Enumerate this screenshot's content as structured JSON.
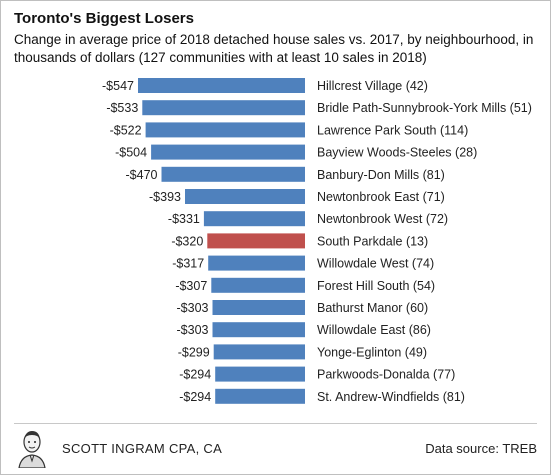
{
  "header": {
    "title": "Toronto's Biggest Losers",
    "subtitle": "Change in average price of 2018  detached house sales vs. 2017, by neighbourhood, in thousands of dollars (127 communities with at least 10 sales in 2018)"
  },
  "footer": {
    "author": "SCOTT INGRAM CPA, CA",
    "source": "Data source: TREB",
    "avatar_icon": "portrait-sketch-icon"
  },
  "chart_data": {
    "type": "bar",
    "orientation": "horizontal",
    "categories": [
      "Hillcrest Village (42)",
      "Bridle Path-Sunnybrook-York Mills (51)",
      "Lawrence Park South (114)",
      "Bayview Woods-Steeles (28)",
      "Banbury-Don Mills (81)",
      "Newtonbrook East (71)",
      "Newtonbrook West (72)",
      "South Parkdale (13)",
      "Willowdale West (74)",
      "Forest Hill South (54)",
      "Bathurst Manor (60)",
      "Willowdale East (86)",
      "Yonge-Eglinton (49)",
      "Parkwoods-Donalda (77)",
      "St. Andrew-Windfields (81)"
    ],
    "values": [
      -547,
      -533,
      -522,
      -504,
      -470,
      -393,
      -331,
      -320,
      -317,
      -307,
      -303,
      -303,
      -299,
      -294,
      -294
    ],
    "value_labels": [
      "-$547",
      "-$533",
      "-$522",
      "-$504",
      "-$470",
      "-$393",
      "-$331",
      "-$320",
      "-$317",
      "-$307",
      "-$303",
      "-$303",
      "-$299",
      "-$294",
      "-$294"
    ],
    "highlight_index": 7,
    "colors": {
      "bar": "#4f81bd",
      "highlight": "#c0504d"
    },
    "xlim": [
      -547,
      0
    ],
    "grid": false,
    "legend": "none"
  }
}
